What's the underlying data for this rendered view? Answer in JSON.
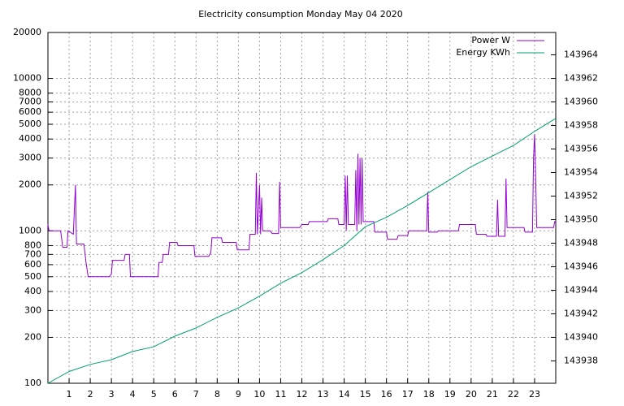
{
  "chart_data": {
    "type": "line",
    "title": "Electricity consumption Monday May 04 2020",
    "xlim": [
      0,
      24
    ],
    "xticks": [
      1,
      2,
      3,
      4,
      5,
      6,
      7,
      8,
      9,
      10,
      11,
      12,
      13,
      14,
      15,
      16,
      17,
      18,
      19,
      20,
      21,
      22,
      23
    ],
    "ylog": true,
    "ylim": [
      100,
      20000
    ],
    "yticks": [
      100,
      200,
      300,
      400,
      500,
      600,
      700,
      800,
      1000,
      2000,
      3000,
      4000,
      5000,
      6000,
      7000,
      8000,
      10000,
      20000
    ],
    "y2lim": [
      143936.1,
      143965.9
    ],
    "y2ticks": [
      143938,
      143940,
      143942,
      143944,
      143946,
      143948,
      143950,
      143952,
      143954,
      143956,
      143958,
      143960,
      143962,
      143964
    ],
    "grid": true,
    "legend": "top-right",
    "series": [
      {
        "name": "Power W",
        "color": "#9400d3",
        "x": [
          0,
          0.05,
          0.6,
          0.7,
          0.9,
          0.95,
          1.2,
          1.3,
          1.35,
          1.7,
          1.8,
          1.9,
          2.9,
          3.0,
          3.05,
          3.6,
          3.65,
          3.85,
          3.9,
          5.2,
          5.25,
          5.4,
          5.45,
          5.7,
          5.75,
          6.1,
          6.15,
          6.9,
          6.95,
          7.6,
          7.7,
          7.75,
          8.2,
          8.25,
          8.9,
          8.95,
          9.5,
          9.55,
          9.8,
          9.85,
          9.9,
          10.0,
          10.05,
          10.1,
          10.15,
          10.5,
          10.6,
          10.9,
          10.95,
          11.0,
          11.9,
          12.0,
          12.3,
          12.35,
          13.2,
          13.25,
          13.7,
          13.75,
          14.0,
          14.05,
          14.1,
          14.15,
          14.2,
          14.5,
          14.55,
          14.6,
          14.65,
          14.7,
          14.75,
          14.8,
          14.85,
          14.9,
          15.4,
          15.45,
          16.0,
          16.05,
          16.5,
          16.55,
          17.0,
          17.05,
          17.9,
          17.95,
          18.0,
          18.4,
          18.45,
          19.4,
          19.45,
          20.2,
          20.25,
          20.7,
          20.75,
          21.2,
          21.25,
          21.3,
          21.6,
          21.65,
          21.7,
          22.5,
          22.55,
          22.9,
          22.95,
          23.0,
          23.05,
          23.1,
          23.9,
          23.95,
          24
        ],
        "values": [
          1100,
          1000,
          1000,
          780,
          780,
          1000,
          950,
          2000,
          820,
          820,
          620,
          500,
          500,
          520,
          640,
          640,
          700,
          700,
          500,
          500,
          620,
          620,
          700,
          700,
          840,
          840,
          800,
          800,
          680,
          680,
          720,
          900,
          900,
          840,
          840,
          750,
          750,
          950,
          950,
          2400,
          950,
          2000,
          950,
          1650,
          1000,
          1000,
          960,
          960,
          2100,
          1050,
          1050,
          1100,
          1100,
          1150,
          1150,
          1200,
          1200,
          1100,
          1100,
          2300,
          1000,
          2300,
          1100,
          1100,
          2500,
          1000,
          3200,
          1100,
          3000,
          1100,
          3000,
          1150,
          1150,
          980,
          980,
          880,
          880,
          930,
          930,
          1000,
          1000,
          1800,
          980,
          980,
          1000,
          1000,
          1100,
          1100,
          950,
          950,
          920,
          920,
          1600,
          920,
          920,
          2200,
          1050,
          1050,
          980,
          980,
          3000,
          4300,
          2300,
          1050,
          1050,
          1150,
          1150
        ]
      },
      {
        "name": "Energy KWh",
        "color": "#009e73",
        "axis": "y2",
        "x": [
          0,
          1,
          2,
          3,
          4,
          5,
          6,
          7,
          8,
          9,
          10,
          11,
          12,
          13,
          14,
          15,
          16,
          17,
          18,
          19,
          20,
          21,
          22,
          23,
          24
        ],
        "values": [
          143936.1,
          143937.1,
          143937.7,
          143938.1,
          143938.8,
          143939.2,
          143940.1,
          143940.8,
          143941.7,
          143942.5,
          143943.5,
          143944.6,
          143945.5,
          143946.6,
          143947.8,
          143949.4,
          143950.2,
          143951.2,
          143952.3,
          143953.4,
          143954.5,
          143955.4,
          143956.3,
          143957.5,
          143958.6
        ]
      }
    ]
  }
}
